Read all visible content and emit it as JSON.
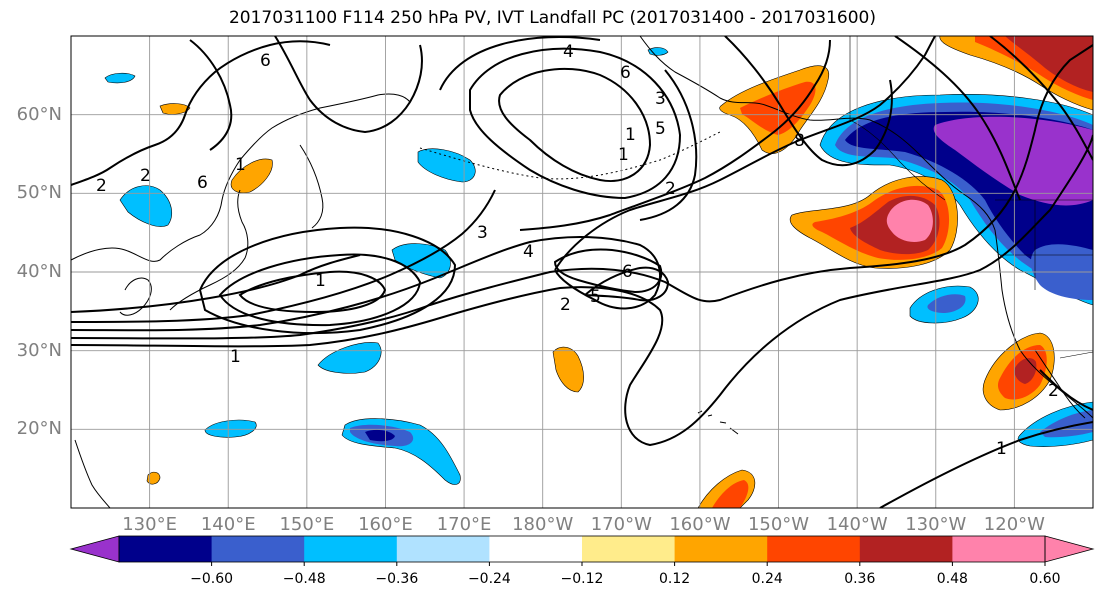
{
  "title": "2017031100 F114 250 hPa PV, IVT Landfall PC (2017031400 - 2017031600)",
  "map": {
    "lon_range": [
      120,
      250
    ],
    "lat_range": [
      10,
      70
    ],
    "lat_labels": [
      "60°N",
      "50°N",
      "40°N",
      "30°N",
      "20°N"
    ],
    "lat_values": [
      60,
      50,
      40,
      30,
      20
    ],
    "lon_labels": [
      "130°E",
      "140°E",
      "150°E",
      "160°E",
      "170°E",
      "180°W",
      "170°W",
      "160°W",
      "150°W",
      "140°W",
      "130°W",
      "120°W"
    ],
    "lon_values": [
      130,
      140,
      150,
      160,
      170,
      180,
      190,
      200,
      210,
      220,
      230,
      240
    ],
    "contour_labels": [
      "6",
      "2",
      "2",
      "6",
      "1",
      "4",
      "6",
      "5",
      "2",
      "1",
      "3",
      "4",
      "2",
      "6",
      "5",
      "1",
      "1",
      "8",
      "2",
      "1",
      "1",
      "3"
    ]
  },
  "colorbar": {
    "ticks": [
      "−0.60",
      "−0.48",
      "−0.36",
      "−0.24",
      "−0.12",
      "0.12",
      "0.24",
      "0.36",
      "0.48",
      "0.60"
    ],
    "colors": [
      "#9932cc",
      "#00008b",
      "#3a5fcd",
      "#00bfff",
      "#b0e2ff",
      "#ffffff",
      "#ffec8b",
      "#ffa500",
      "#ff4500",
      "#b22222",
      "#ff82ab",
      "#ff82ab"
    ]
  },
  "legend_colors": {
    "purple": "#9932cc",
    "navy": "#00008b",
    "royal": "#3a5fcd",
    "sky": "#00bfff",
    "pale_blue": "#b0e2ff",
    "yellow": "#ffec8b",
    "orange": "#ffa500",
    "red_orange": "#ff4500",
    "firebrick": "#b22222",
    "pink": "#ff82ab"
  }
}
